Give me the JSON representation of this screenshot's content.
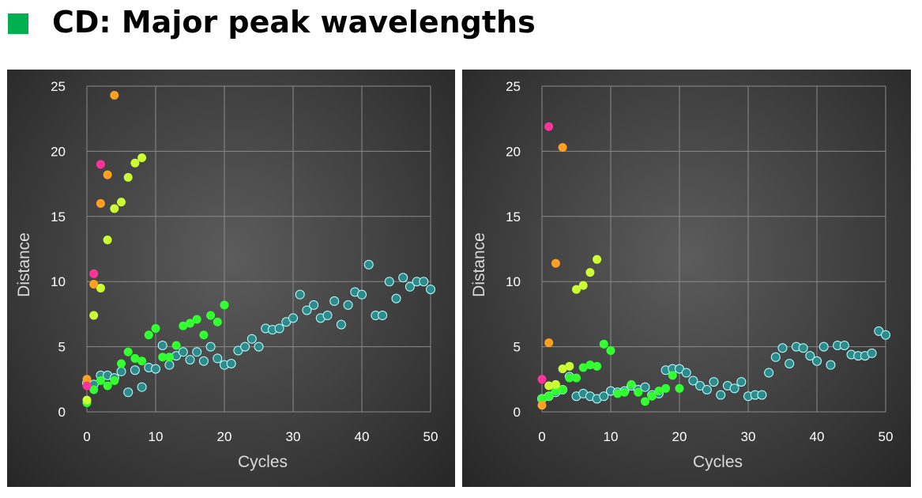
{
  "header": {
    "title": "CD: Major peak wavelengths",
    "marker_color": "#00b050"
  },
  "colors": {
    "pink": "#ff3399",
    "orange": "#ffa020",
    "yellowgreen": "#ccff33",
    "green": "#33ff33",
    "cyan": "#2e8b8b",
    "grid": "#8a8a8a",
    "cyan_stroke": "#b8ffff"
  },
  "chart_data": [
    {
      "type": "scatter",
      "xlabel": "Cycles",
      "ylabel": "Distance",
      "xlim": [
        0,
        50
      ],
      "ylim": [
        0,
        25
      ],
      "xticks": [
        0,
        10,
        20,
        30,
        40,
        50
      ],
      "yticks": [
        0,
        5,
        10,
        15,
        20,
        25
      ],
      "grid": true,
      "series": [
        {
          "color": "pink",
          "points": [
            [
              0,
              2.0
            ],
            [
              1,
              10.6
            ],
            [
              2,
              19.0
            ]
          ]
        },
        {
          "color": "orange",
          "points": [
            [
              0,
              2.5
            ],
            [
              1,
              9.8
            ],
            [
              2,
              16.0
            ],
            [
              3,
              18.2
            ],
            [
              4,
              24.3
            ]
          ]
        },
        {
          "color": "yellowgreen",
          "points": [
            [
              0,
              0.9
            ],
            [
              1,
              7.4
            ],
            [
              2,
              9.5
            ],
            [
              3,
              13.2
            ],
            [
              4,
              15.6
            ],
            [
              5,
              16.1
            ],
            [
              6,
              18.0
            ],
            [
              7,
              19.1
            ],
            [
              8,
              19.5
            ]
          ]
        },
        {
          "color": "green",
          "points": [
            [
              0,
              0.7
            ],
            [
              1,
              1.7
            ],
            [
              2,
              2.4
            ],
            [
              3,
              2.0
            ],
            [
              4,
              2.4
            ],
            [
              5,
              3.7
            ],
            [
              6,
              4.6
            ],
            [
              7,
              4.1
            ],
            [
              8,
              3.9
            ],
            [
              9,
              5.9
            ],
            [
              10,
              6.4
            ],
            [
              11,
              4.2
            ],
            [
              12,
              4.2
            ],
            [
              13,
              5.1
            ],
            [
              14,
              6.6
            ],
            [
              15,
              6.8
            ],
            [
              16,
              7.1
            ],
            [
              17,
              5.9
            ],
            [
              18,
              7.4
            ],
            [
              19,
              6.9
            ],
            [
              20,
              8.2
            ]
          ]
        },
        {
          "color": "cyan",
          "points": [
            [
              0,
              2.2
            ],
            [
              1,
              2.1
            ],
            [
              2,
              2.8
            ],
            [
              3,
              2.8
            ],
            [
              4,
              2.6
            ],
            [
              5,
              3.1
            ],
            [
              6,
              1.5
            ],
            [
              7,
              3.2
            ],
            [
              8,
              1.9
            ],
            [
              9,
              3.4
            ],
            [
              10,
              3.3
            ],
            [
              11,
              5.1
            ],
            [
              12,
              3.6
            ],
            [
              13,
              4.3
            ],
            [
              14,
              4.6
            ],
            [
              15,
              4.0
            ],
            [
              16,
              4.6
            ],
            [
              17,
              3.9
            ],
            [
              18,
              5.0
            ],
            [
              19,
              4.1
            ],
            [
              20,
              3.6
            ],
            [
              21,
              3.7
            ],
            [
              22,
              4.7
            ],
            [
              23,
              5.0
            ],
            [
              24,
              5.6
            ],
            [
              25,
              5.0
            ],
            [
              26,
              6.4
            ],
            [
              27,
              6.3
            ],
            [
              28,
              6.4
            ],
            [
              29,
              6.9
            ],
            [
              30,
              7.2
            ],
            [
              31,
              9.0
            ],
            [
              32,
              7.8
            ],
            [
              33,
              8.2
            ],
            [
              34,
              7.2
            ],
            [
              35,
              7.4
            ],
            [
              36,
              8.5
            ],
            [
              37,
              6.7
            ],
            [
              38,
              8.2
            ],
            [
              39,
              9.2
            ],
            [
              40,
              9.0
            ],
            [
              41,
              11.3
            ],
            [
              42,
              7.4
            ],
            [
              43,
              7.4
            ],
            [
              44,
              10.0
            ],
            [
              45,
              8.7
            ],
            [
              46,
              10.3
            ],
            [
              47,
              9.6
            ],
            [
              48,
              10.0
            ],
            [
              49,
              10.0
            ],
            [
              50,
              9.4
            ]
          ]
        }
      ]
    },
    {
      "type": "scatter",
      "xlabel": "Cycles",
      "ylabel": "Distance",
      "xlim": [
        0,
        50
      ],
      "ylim": [
        0,
        25
      ],
      "xticks": [
        0,
        10,
        20,
        30,
        40,
        50
      ],
      "yticks": [
        0,
        5,
        10,
        15,
        20,
        25
      ],
      "grid": true,
      "series": [
        {
          "color": "pink",
          "points": [
            [
              0,
              2.5
            ],
            [
              1,
              21.9
            ]
          ]
        },
        {
          "color": "orange",
          "points": [
            [
              0,
              0.5
            ],
            [
              1,
              5.3
            ],
            [
              2,
              11.4
            ],
            [
              3,
              20.3
            ]
          ]
        },
        {
          "color": "yellowgreen",
          "points": [
            [
              1,
              2.0
            ],
            [
              2,
              2.1
            ],
            [
              3,
              3.3
            ],
            [
              4,
              3.5
            ],
            [
              5,
              9.4
            ],
            [
              6,
              9.7
            ],
            [
              7,
              10.7
            ],
            [
              8,
              11.7
            ]
          ]
        },
        {
          "color": "green",
          "points": [
            [
              0,
              1.0
            ],
            [
              1,
              1.2
            ],
            [
              2,
              1.6
            ],
            [
              3,
              1.7
            ],
            [
              4,
              2.6
            ],
            [
              5,
              2.6
            ],
            [
              6,
              3.4
            ],
            [
              7,
              3.6
            ],
            [
              8,
              3.5
            ],
            [
              9,
              5.2
            ],
            [
              10,
              4.7
            ],
            [
              11,
              1.4
            ],
            [
              12,
              1.5
            ],
            [
              13,
              2.1
            ],
            [
              14,
              1.5
            ],
            [
              15,
              0.8
            ],
            [
              16,
              1.2
            ],
            [
              17,
              1.6
            ],
            [
              18,
              1.8
            ],
            [
              19,
              2.8
            ],
            [
              20,
              1.8
            ]
          ]
        },
        {
          "color": "cyan",
          "points": [
            [
              0,
              1.0
            ],
            [
              1,
              1.2
            ],
            [
              2,
              1.5
            ],
            [
              3,
              1.7
            ],
            [
              4,
              2.7
            ],
            [
              5,
              1.2
            ],
            [
              6,
              1.4
            ],
            [
              7,
              1.2
            ],
            [
              8,
              1.0
            ],
            [
              9,
              1.2
            ],
            [
              10,
              1.6
            ],
            [
              11,
              1.5
            ],
            [
              12,
              1.6
            ],
            [
              13,
              2.0
            ],
            [
              14,
              1.7
            ],
            [
              15,
              1.9
            ],
            [
              16,
              1.3
            ],
            [
              17,
              1.4
            ],
            [
              18,
              3.2
            ],
            [
              19,
              3.3
            ],
            [
              20,
              3.3
            ],
            [
              21,
              3.0
            ],
            [
              22,
              2.4
            ],
            [
              23,
              2.0
            ],
            [
              24,
              1.7
            ],
            [
              25,
              2.3
            ],
            [
              26,
              1.3
            ],
            [
              27,
              2.0
            ],
            [
              28,
              1.8
            ],
            [
              29,
              2.3
            ],
            [
              30,
              1.2
            ],
            [
              31,
              1.3
            ],
            [
              32,
              1.3
            ],
            [
              33,
              3.0
            ],
            [
              34,
              4.2
            ],
            [
              35,
              4.9
            ],
            [
              36,
              3.7
            ],
            [
              37,
              5.0
            ],
            [
              38,
              4.9
            ],
            [
              39,
              4.3
            ],
            [
              40,
              3.9
            ],
            [
              41,
              5.0
            ],
            [
              42,
              3.6
            ],
            [
              43,
              5.1
            ],
            [
              44,
              5.1
            ],
            [
              45,
              4.4
            ],
            [
              46,
              4.3
            ],
            [
              47,
              4.3
            ],
            [
              48,
              4.5
            ],
            [
              49,
              6.2
            ],
            [
              50,
              5.9
            ]
          ]
        }
      ]
    }
  ]
}
